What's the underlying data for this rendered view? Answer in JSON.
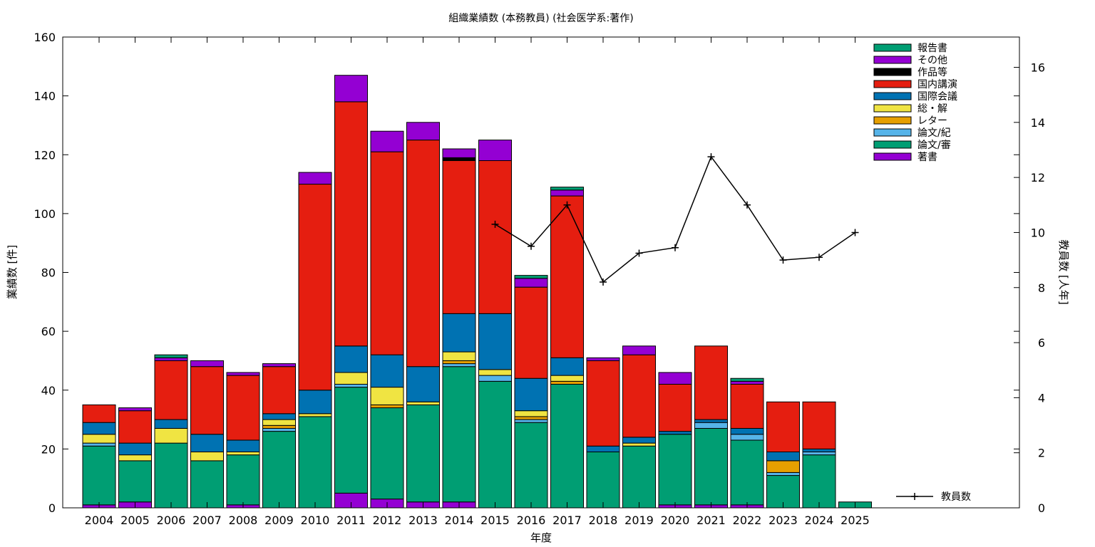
{
  "chart_data": {
    "type": "bar",
    "stacked": true,
    "title": "組織業績数 (本務教員) (社会医学系:著作)",
    "xlabel": "年度",
    "ylabel": "業績数 [件]",
    "y2label": "教員数 [人年]",
    "ylim": [
      0,
      160
    ],
    "y2lim": [
      0,
      17.1
    ],
    "yticks": [
      "0",
      "20",
      "40",
      "60",
      "80",
      "100",
      "120",
      "140",
      "160"
    ],
    "y2ticks": [
      "0",
      "2",
      "4",
      "6",
      "8",
      "10",
      "12",
      "14",
      "16"
    ],
    "legend_position": "top-right",
    "grid": false,
    "categories": [
      "2004",
      "2005",
      "2006",
      "2007",
      "2008",
      "2009",
      "2010",
      "2011",
      "2012",
      "2013",
      "2014",
      "2015",
      "2016",
      "2017",
      "2018",
      "2019",
      "2020",
      "2021",
      "2022",
      "2023",
      "2024",
      "2025"
    ],
    "series": [
      {
        "name": "著書",
        "color": "#9400d3",
        "values": [
          1,
          2,
          0,
          0,
          1,
          0,
          0,
          5,
          3,
          2,
          2,
          0,
          0,
          0,
          0,
          0,
          1,
          1,
          1,
          0,
          0,
          0
        ]
      },
      {
        "name": "論文/審",
        "color": "#009e73",
        "values": [
          20,
          14,
          22,
          16,
          17,
          26,
          31,
          36,
          31,
          33,
          46,
          43,
          29,
          42,
          19,
          21,
          24,
          26,
          22,
          11,
          18,
          2
        ]
      },
      {
        "name": "論文/紀",
        "color": "#56b4e9",
        "values": [
          1,
          0,
          0,
          0,
          0,
          1,
          0,
          1,
          0,
          0,
          1,
          2,
          1,
          0,
          0,
          0,
          0,
          2,
          2,
          1,
          1,
          0
        ]
      },
      {
        "name": "レター",
        "color": "#e69f00",
        "values": [
          0,
          0,
          0,
          0,
          0,
          1,
          0,
          0,
          1,
          0,
          1,
          0,
          1,
          1,
          0,
          0,
          0,
          0,
          0,
          4,
          0,
          0
        ]
      },
      {
        "name": "総・解",
        "color": "#f0e442",
        "values": [
          3,
          2,
          5,
          3,
          1,
          2,
          1,
          4,
          6,
          1,
          3,
          2,
          2,
          2,
          0,
          1,
          0,
          0,
          0,
          0,
          0,
          0
        ]
      },
      {
        "name": "国際会議",
        "color": "#0072b2",
        "values": [
          4,
          4,
          3,
          6,
          4,
          2,
          8,
          9,
          11,
          12,
          13,
          19,
          11,
          6,
          2,
          2,
          1,
          1,
          2,
          3,
          1,
          0
        ]
      },
      {
        "name": "国内講演",
        "color": "#e51e10",
        "values": [
          6,
          11,
          20,
          23,
          22,
          16,
          70,
          83,
          69,
          77,
          52,
          52,
          31,
          55,
          29,
          28,
          16,
          25,
          15,
          17,
          16,
          0
        ]
      },
      {
        "name": "作品等",
        "color": "#000000",
        "values": [
          0,
          0,
          0,
          0,
          0,
          0,
          0,
          0,
          0,
          0,
          1,
          0,
          0,
          0,
          0,
          0,
          0,
          0,
          0,
          0,
          0,
          0
        ]
      },
      {
        "name": "その他",
        "color": "#9400d3",
        "values": [
          0,
          1,
          1,
          2,
          1,
          1,
          4,
          9,
          7,
          6,
          3,
          7,
          3,
          2,
          1,
          3,
          4,
          0,
          1,
          0,
          0,
          0
        ]
      },
      {
        "name": "報告書",
        "color": "#009e73",
        "values": [
          0,
          0,
          1,
          0,
          0,
          0,
          0,
          0,
          0,
          0,
          0,
          0,
          1,
          1,
          0,
          0,
          0,
          0,
          1,
          0,
          0,
          0
        ]
      }
    ],
    "line_series": {
      "name": "教員数",
      "color": "#000000",
      "x": [
        "2015",
        "2016",
        "2017",
        "2018",
        "2019",
        "2020",
        "2021",
        "2022",
        "2023",
        "2024",
        "2025"
      ],
      "values": [
        10.3,
        9.5,
        11.0,
        8.2,
        9.25,
        9.45,
        12.75,
        11.0,
        9.0,
        9.1,
        10.0
      ]
    }
  }
}
